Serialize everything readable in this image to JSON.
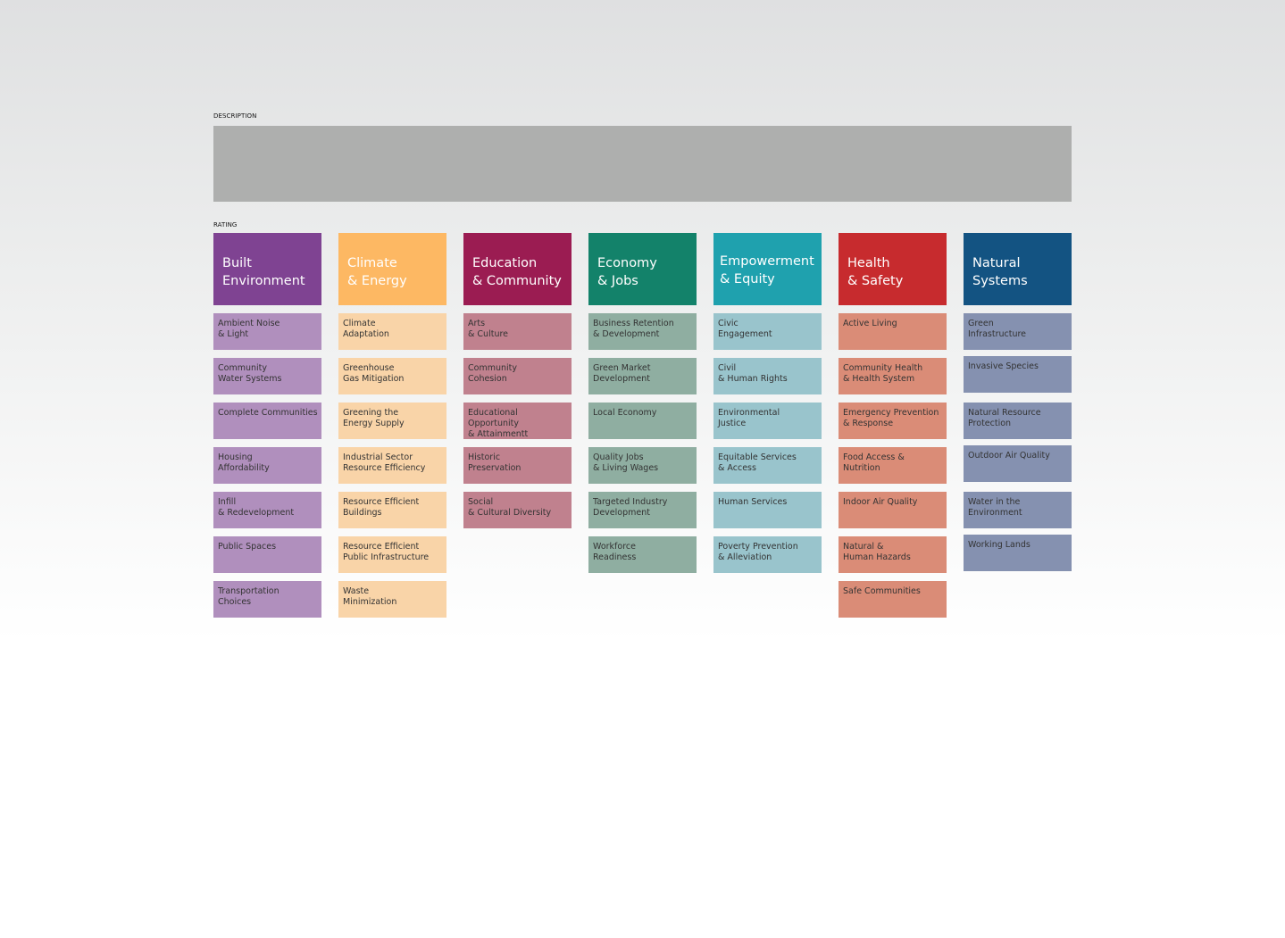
{
  "labels": {
    "description": "DESCRIPTION",
    "rating": "RATING"
  },
  "categories": [
    {
      "title": "Built\nEnvironment",
      "header_color": "#7f4392",
      "item_color": "#b08fbd",
      "items": [
        "Ambient Noise\n& Light",
        "Community\nWater Systems",
        "Complete Communities",
        "Housing\nAffordability",
        "Infill\n& Redevelopment",
        "Public Spaces",
        "Transportation\nChoices"
      ]
    },
    {
      "title": "Climate\n& Energy",
      "header_color": "#fdb863",
      "item_color": "#f9d4a8",
      "items": [
        "Climate\nAdaptation",
        "Greenhouse\nGas Mitigation",
        "Greening the\nEnergy Supply",
        "Industrial Sector\nResource Efficiency",
        "Resource Efficient\nBuildings",
        "Resource Efficient\nPublic Infrastructure",
        "Waste\nMinimization"
      ]
    },
    {
      "title": "Education\n& Community",
      "header_color": "#9b1c52",
      "item_color": "#c0818e",
      "items": [
        "Arts\n& Culture",
        "Community\nCohesion",
        "Educational Opportunity\n& Attainmentt",
        "Historic\nPreservation",
        "Social\n& Cultural Diversity"
      ]
    },
    {
      "title": "Economy\n& Jobs",
      "header_color": "#13826a",
      "item_color": "#8faea1",
      "items": [
        "Business Retention\n& Development",
        "Green Market\nDevelopment",
        "Local Economy",
        "Quality Jobs\n& Living Wages",
        "Targeted Industry\nDevelopment",
        "Workforce\nReadiness"
      ]
    },
    {
      "title": "Empowerment\n& Equity",
      "header_color": "#1fa1ae",
      "item_color": "#99c4cc",
      "items": [
        "Civic\nEngagement",
        "Civil\n& Human Rights",
        "Environmental\nJustice",
        "Equitable Services\n& Access",
        "Human Services",
        "Poverty Prevention\n& Alleviation"
      ]
    },
    {
      "title": "Health\n& Safety",
      "header_color": "#c72b2e",
      "item_color": "#da8c77",
      "items": [
        "Active Living",
        "Community Health\n& Health System",
        "Emergency Prevention\n& Response",
        "Food Access &\nNutrition",
        "Indoor Air Quality",
        "Natural &\nHuman Hazards",
        "Safe Communities"
      ]
    },
    {
      "title": "Natural\nSystems",
      "header_color": "#135382",
      "item_color": "#8591b0",
      "items": [
        "Green\nInfrastructure",
        "Invasive Species",
        "Natural Resource\nProtection",
        "Outdoor Air Quality",
        "Water in the\nEnvironment",
        "Working Lands"
      ]
    }
  ]
}
